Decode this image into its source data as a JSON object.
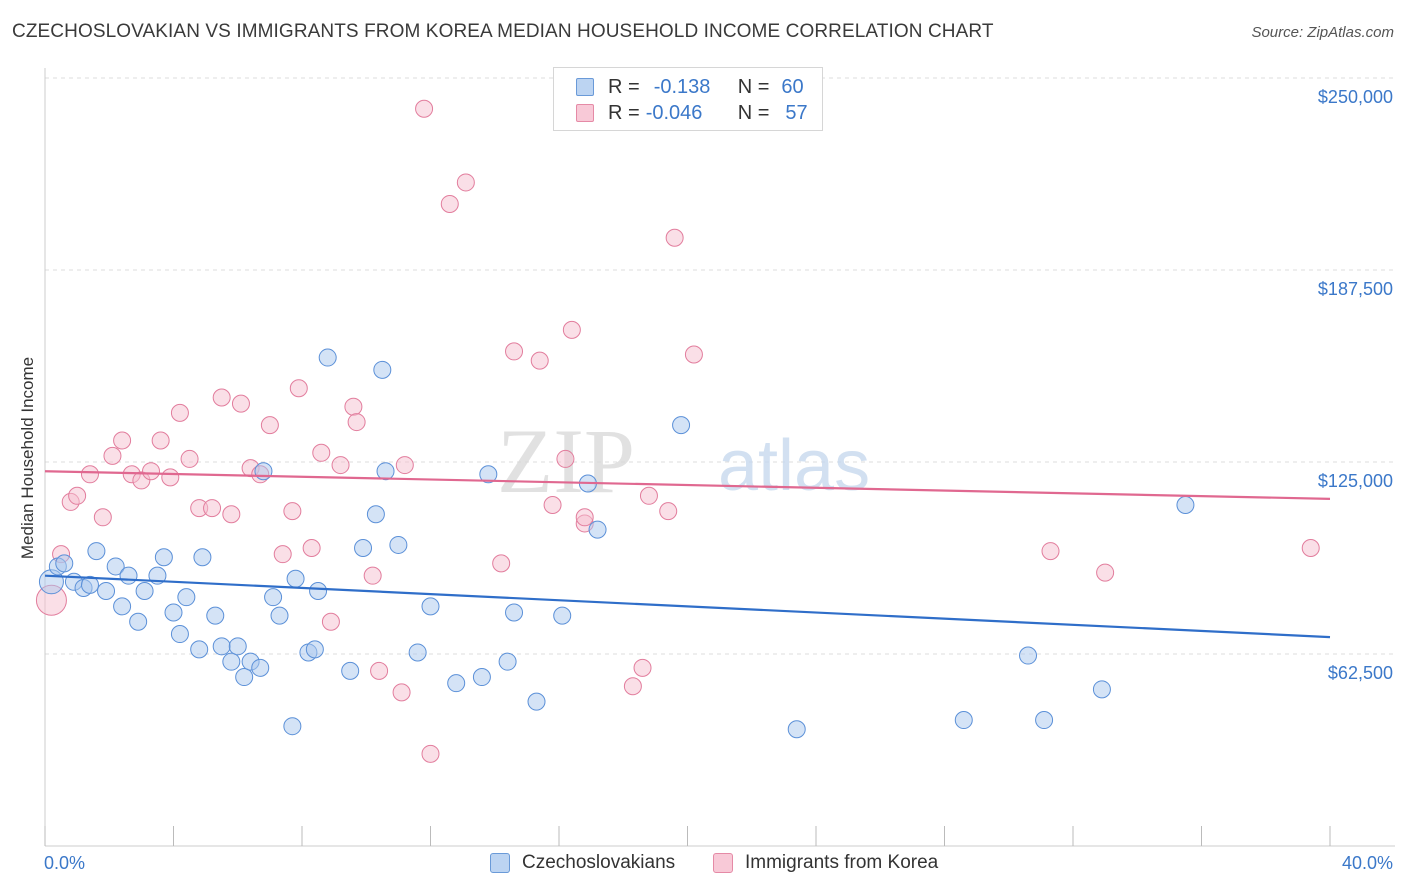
{
  "header": {
    "title": "CZECHOSLOVAKIAN VS IMMIGRANTS FROM KOREA MEDIAN HOUSEHOLD INCOME CORRELATION CHART",
    "source": "Source: ZipAtlas.com"
  },
  "legend_top": {
    "rows": [
      {
        "r_label": "R =",
        "r_value": "-0.138",
        "n_label": "N =",
        "n_value": "60"
      },
      {
        "r_label": "R =",
        "r_value": "-0.046",
        "n_label": "N =",
        "n_value": "57"
      }
    ]
  },
  "legend_bottom": {
    "items": [
      {
        "label": "Czechoslovakians"
      },
      {
        "label": "Immigrants from Korea"
      }
    ]
  },
  "watermark": {
    "part1": "ZIP",
    "part2": "atlas"
  },
  "colors": {
    "blue_fill": "#aac8ee",
    "blue_stroke": "#5b90d8",
    "blue_line": "#2f6ec9",
    "pink_fill": "#f6bfd0",
    "pink_stroke": "#e27d9d",
    "pink_line": "#e06890",
    "tick_text": "#3b78c9",
    "grid": "#dddddd"
  },
  "chart_data": {
    "type": "scatter",
    "title": "CZECHOSLOVAKIAN VS IMMIGRANTS FROM KOREA MEDIAN HOUSEHOLD INCOME CORRELATION CHART",
    "xlabel": "",
    "ylabel": "Median Household Income",
    "xlim": [
      0,
      40
    ],
    "ylim": [
      0,
      250000
    ],
    "x_tick_labels": [
      "0.0%",
      "40.0%"
    ],
    "y_ticks": [
      62500,
      125000,
      187500,
      250000
    ],
    "y_tick_labels": [
      "$62,500",
      "$125,000",
      "$187,500",
      "$250,000"
    ],
    "grid": true,
    "legend_position": "top-center",
    "series": [
      {
        "name": "Czechoslovakians",
        "color": "#5b90d8",
        "trend": {
          "x": [
            0,
            40
          ],
          "y": [
            88000,
            68000
          ]
        },
        "points": [
          [
            0.2,
            86000
          ],
          [
            0.4,
            91000
          ],
          [
            0.6,
            92000
          ],
          [
            0.9,
            86000
          ],
          [
            1.2,
            84000
          ],
          [
            1.4,
            85000
          ],
          [
            1.6,
            96000
          ],
          [
            1.9,
            83000
          ],
          [
            2.2,
            91000
          ],
          [
            2.4,
            78000
          ],
          [
            2.6,
            88000
          ],
          [
            2.9,
            73000
          ],
          [
            3.1,
            83000
          ],
          [
            3.5,
            88000
          ],
          [
            3.7,
            94000
          ],
          [
            4.0,
            76000
          ],
          [
            4.2,
            69000
          ],
          [
            4.4,
            81000
          ],
          [
            4.8,
            64000
          ],
          [
            4.9,
            94000
          ],
          [
            5.3,
            75000
          ],
          [
            5.5,
            65000
          ],
          [
            5.8,
            60000
          ],
          [
            6.0,
            65000
          ],
          [
            6.2,
            55000
          ],
          [
            6.4,
            60000
          ],
          [
            6.7,
            58000
          ],
          [
            6.8,
            122000
          ],
          [
            7.1,
            81000
          ],
          [
            7.3,
            75000
          ],
          [
            7.7,
            39000
          ],
          [
            7.8,
            87000
          ],
          [
            8.2,
            63000
          ],
          [
            8.4,
            64000
          ],
          [
            8.5,
            83000
          ],
          [
            8.8,
            159000
          ],
          [
            9.5,
            57000
          ],
          [
            9.9,
            97000
          ],
          [
            10.3,
            108000
          ],
          [
            10.5,
            155000
          ],
          [
            10.6,
            122000
          ],
          [
            11.0,
            98000
          ],
          [
            11.6,
            63000
          ],
          [
            12.0,
            78000
          ],
          [
            12.8,
            53000
          ],
          [
            13.6,
            55000
          ],
          [
            13.8,
            121000
          ],
          [
            14.4,
            60000
          ],
          [
            14.6,
            76000
          ],
          [
            15.3,
            47000
          ],
          [
            16.1,
            75000
          ],
          [
            16.9,
            118000
          ],
          [
            17.2,
            103000
          ],
          [
            19.8,
            137000
          ],
          [
            23.4,
            38000
          ],
          [
            28.6,
            41000
          ],
          [
            30.6,
            62000
          ],
          [
            31.1,
            41000
          ],
          [
            32.9,
            51000
          ],
          [
            35.5,
            111000
          ]
        ]
      },
      {
        "name": "Immigrants from Korea",
        "color": "#e27d9d",
        "trend": {
          "x": [
            0,
            40
          ],
          "y": [
            122000,
            113000
          ]
        },
        "points": [
          [
            0.2,
            80000
          ],
          [
            0.5,
            95000
          ],
          [
            0.8,
            112000
          ],
          [
            1.0,
            114000
          ],
          [
            1.4,
            121000
          ],
          [
            1.8,
            107000
          ],
          [
            2.1,
            127000
          ],
          [
            2.4,
            132000
          ],
          [
            2.7,
            121000
          ],
          [
            3.0,
            119000
          ],
          [
            3.3,
            122000
          ],
          [
            3.6,
            132000
          ],
          [
            3.9,
            120000
          ],
          [
            4.2,
            141000
          ],
          [
            4.5,
            126000
          ],
          [
            4.8,
            110000
          ],
          [
            5.2,
            110000
          ],
          [
            5.5,
            146000
          ],
          [
            5.8,
            108000
          ],
          [
            6.1,
            144000
          ],
          [
            6.4,
            123000
          ],
          [
            6.7,
            121000
          ],
          [
            7.0,
            137000
          ],
          [
            7.4,
            95000
          ],
          [
            7.7,
            109000
          ],
          [
            7.9,
            149000
          ],
          [
            8.3,
            97000
          ],
          [
            8.6,
            128000
          ],
          [
            8.9,
            73000
          ],
          [
            9.2,
            124000
          ],
          [
            9.6,
            143000
          ],
          [
            9.7,
            138000
          ],
          [
            10.2,
            88000
          ],
          [
            10.4,
            57000
          ],
          [
            11.1,
            50000
          ],
          [
            11.2,
            124000
          ],
          [
            11.8,
            240000
          ],
          [
            12.0,
            30000
          ],
          [
            12.6,
            209000
          ],
          [
            13.1,
            216000
          ],
          [
            14.2,
            92000
          ],
          [
            14.6,
            161000
          ],
          [
            15.4,
            158000
          ],
          [
            15.8,
            111000
          ],
          [
            16.2,
            126000
          ],
          [
            16.4,
            168000
          ],
          [
            16.8,
            105000
          ],
          [
            16.8,
            107000
          ],
          [
            18.3,
            52000
          ],
          [
            18.6,
            58000
          ],
          [
            18.8,
            114000
          ],
          [
            19.4,
            109000
          ],
          [
            19.6,
            198000
          ],
          [
            20.2,
            160000
          ],
          [
            31.3,
            96000
          ],
          [
            33.0,
            89000
          ],
          [
            39.4,
            97000
          ]
        ]
      }
    ]
  }
}
